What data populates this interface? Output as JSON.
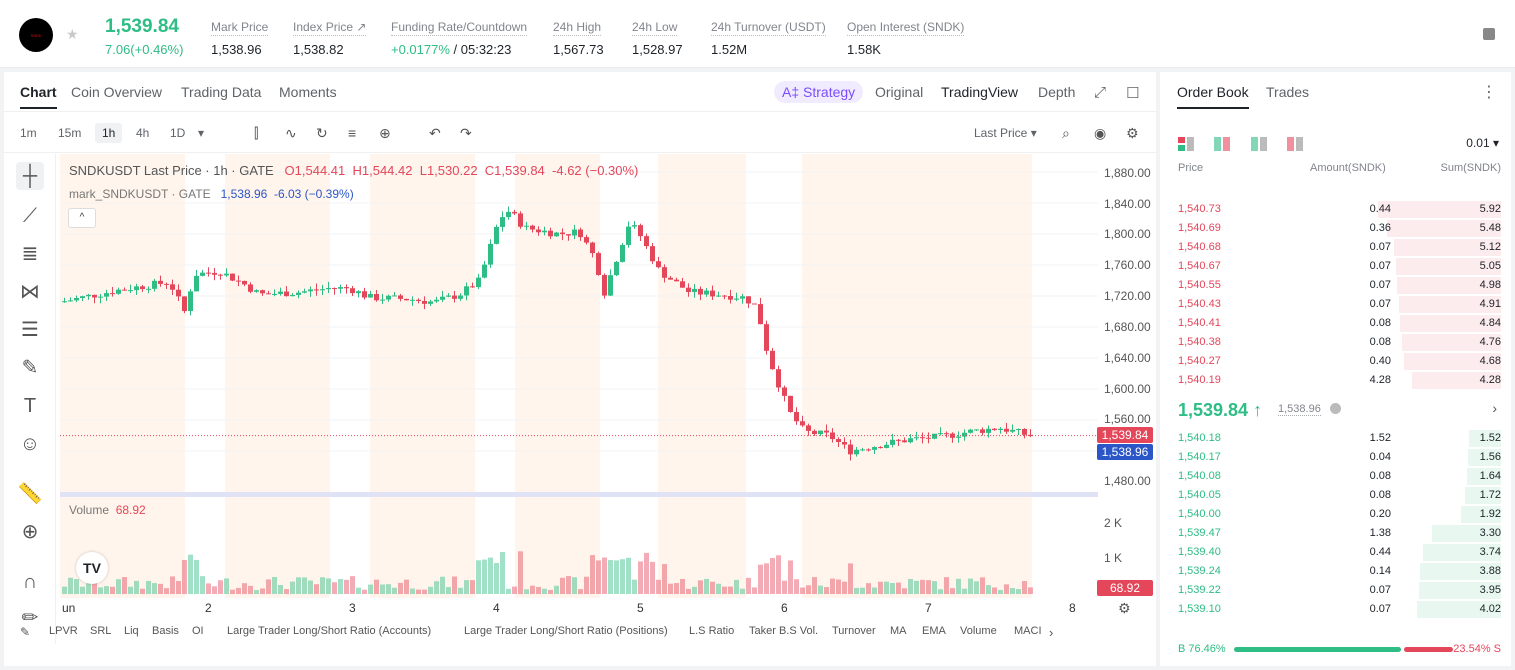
{
  "header": {
    "last_price": "1,539.84",
    "change": "7.06(+0.46%)",
    "stats": [
      {
        "label": "Mark Price",
        "value": "1,538.96"
      },
      {
        "label": "Index Price ↗",
        "value": "1,538.82"
      },
      {
        "label": "Funding Rate/Countdown",
        "value_green": "+0.0177%",
        "value": " / 05:32:23"
      },
      {
        "label": "24h High",
        "value": "1,567.73"
      },
      {
        "label": "24h Low",
        "value": "1,528.97"
      },
      {
        "label": "24h Turnover (USDT)",
        "value": "1.52M"
      },
      {
        "label": "Open Interest (SNDK)",
        "value": "1.58K"
      }
    ]
  },
  "chart_tabs": [
    "Chart",
    "Coin Overview",
    "Trading Data",
    "Moments"
  ],
  "view_tabs": {
    "strategy": "A‡ Strategy",
    "original": "Original",
    "tradingview": "TradingView",
    "depth": "Depth"
  },
  "timeframes": [
    "1m",
    "15m",
    "1h",
    "4h",
    "1D"
  ],
  "price_type": "Last Price",
  "legend": {
    "symbol": "SNDKUSDT Last Price · 1h · GATE",
    "open": "O1,544.41",
    "high": "H1,544.42",
    "low": "L1,530.22",
    "close": "C1,539.84",
    "chg": "-4.62 (−0.30%)",
    "mark_name": "mark_SNDKUSDT · GATE",
    "mark_val": "1,538.96",
    "mark_chg": "-6.03 (−0.39%)",
    "volume_label": "Volume",
    "volume_val": "68.92"
  },
  "y_axis": [
    "1,880.00",
    "1,840.00",
    "1,800.00",
    "1,760.00",
    "1,720.00",
    "1,680.00",
    "1,640.00",
    "1,600.00",
    "1,560.00",
    "1,480.00"
  ],
  "price_tags": {
    "last": "1,539.84",
    "mark": "1,538.96",
    "volume": "68.92"
  },
  "vol_axis": [
    "2 K",
    "1 K"
  ],
  "x_axis": [
    "un",
    "2",
    "3",
    "4",
    "5",
    "6",
    "7",
    "8"
  ],
  "indicators": [
    "LPVR",
    "SRL",
    "Liq",
    "Basis",
    "OI",
    "Large Trader Long/Short Ratio (Accounts)",
    "Large Trader Long/Short Ratio (Positions)",
    "L.S Ratio",
    "Taker B.S Vol.",
    "Turnover",
    "MA",
    "EMA",
    "Volume",
    "MACI"
  ],
  "orderbook": {
    "tabs": [
      "Order Book",
      "Trades"
    ],
    "precision": "0.01",
    "columns": [
      "Price",
      "Amount(SNDK)",
      "Sum(SNDK)"
    ],
    "asks": [
      {
        "price": "1,540.73",
        "amount": "0.44",
        "sum": "5.92"
      },
      {
        "price": "1,540.69",
        "amount": "0.36",
        "sum": "5.48"
      },
      {
        "price": "1,540.68",
        "amount": "0.07",
        "sum": "5.12"
      },
      {
        "price": "1,540.67",
        "amount": "0.07",
        "sum": "5.05"
      },
      {
        "price": "1,540.55",
        "amount": "0.07",
        "sum": "4.98"
      },
      {
        "price": "1,540.43",
        "amount": "0.07",
        "sum": "4.91"
      },
      {
        "price": "1,540.41",
        "amount": "0.08",
        "sum": "4.84"
      },
      {
        "price": "1,540.38",
        "amount": "0.08",
        "sum": "4.76"
      },
      {
        "price": "1,540.27",
        "amount": "0.40",
        "sum": "4.68"
      },
      {
        "price": "1,540.19",
        "amount": "4.28",
        "sum": "4.28"
      }
    ],
    "mid_price": "1,539.84 ↑",
    "mid_mark": "1,538.96",
    "bids": [
      {
        "price": "1,540.18",
        "amount": "1.52",
        "sum": "1.52"
      },
      {
        "price": "1,540.17",
        "amount": "0.04",
        "sum": "1.56"
      },
      {
        "price": "1,540.08",
        "amount": "0.08",
        "sum": "1.64"
      },
      {
        "price": "1,540.05",
        "amount": "0.08",
        "sum": "1.72"
      },
      {
        "price": "1,540.00",
        "amount": "0.20",
        "sum": "1.92"
      },
      {
        "price": "1,539.47",
        "amount": "1.38",
        "sum": "3.30"
      },
      {
        "price": "1,539.40",
        "amount": "0.44",
        "sum": "3.74"
      },
      {
        "price": "1,539.24",
        "amount": "0.14",
        "sum": "3.88"
      },
      {
        "price": "1,539.22",
        "amount": "0.07",
        "sum": "3.95"
      },
      {
        "price": "1,539.10",
        "amount": "0.07",
        "sum": "4.02"
      }
    ],
    "buy_ratio": "B 76.46%",
    "sell_ratio": "23.54% S",
    "buy_fraction": 0.7646
  },
  "colors": {
    "up": "#2ebd85",
    "down": "#e4465a",
    "mark": "#2b56c7"
  }
}
